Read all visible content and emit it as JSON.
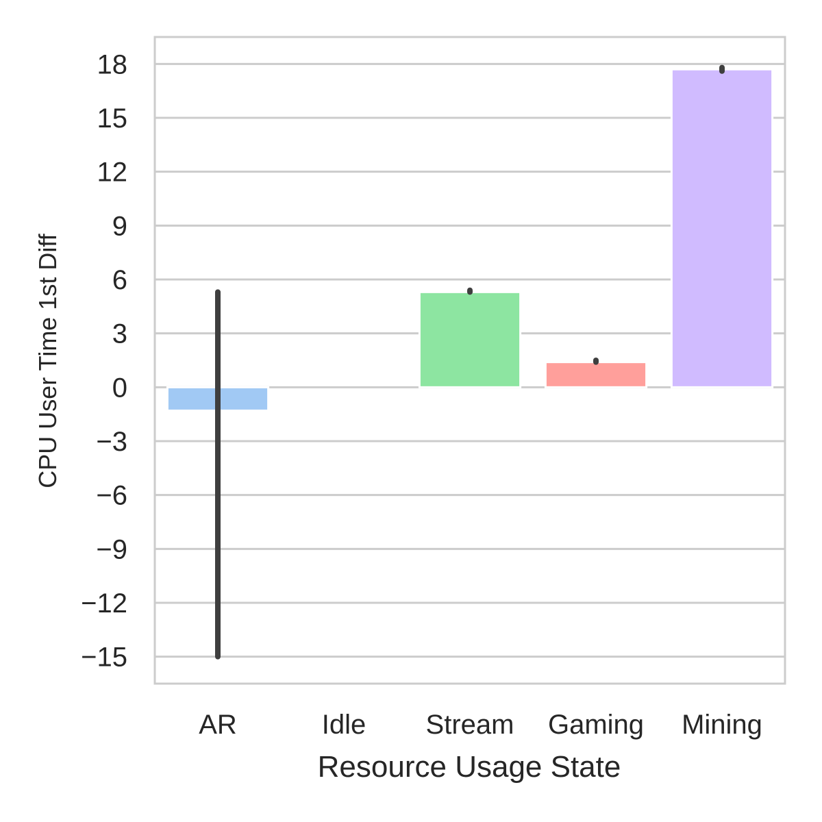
{
  "chart_data": {
    "type": "bar",
    "title": "",
    "xlabel": "Resource Usage State",
    "ylabel": "CPU User Time 1st Diff",
    "categories": [
      "AR",
      "Idle",
      "Stream",
      "Gaming",
      "Mining"
    ],
    "values": [
      -1.3,
      0.0,
      5.3,
      1.4,
      17.7
    ],
    "error_bars": [
      {
        "low": -15.0,
        "high": 5.3
      },
      {
        "low": 0.0,
        "high": 0.0
      },
      {
        "low": 5.3,
        "high": 5.4
      },
      {
        "low": 1.4,
        "high": 1.5
      },
      {
        "low": 17.6,
        "high": 17.8
      }
    ],
    "colors": [
      "#a1c9f4",
      "#ffb482",
      "#8de5a1",
      "#ff9f9b",
      "#d0bbff"
    ],
    "error_color": "#3f3f3f",
    "ylim": [
      -16.5,
      19.5
    ],
    "yticks": [
      -15,
      -12,
      -9,
      -6,
      -3,
      0,
      3,
      6,
      9,
      12,
      15,
      18
    ],
    "ytick_labels": [
      "−15",
      "−12",
      "−9",
      "−6",
      "−3",
      "0",
      "3",
      "6",
      "9",
      "12",
      "15",
      "18"
    ],
    "grid": true,
    "legend": false
  }
}
